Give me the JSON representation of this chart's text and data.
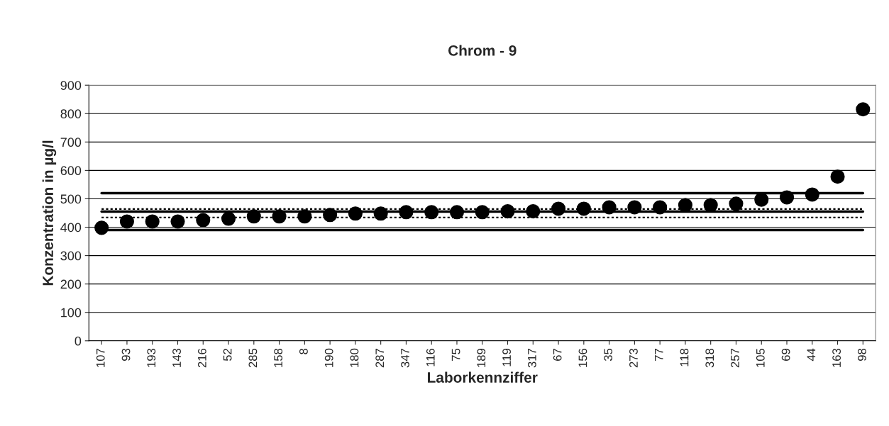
{
  "chart_data": {
    "type": "scatter",
    "title": "Chrom - 9",
    "xlabel": "Laborkennziffer",
    "ylabel": "Konzentration in µg/l",
    "categories": [
      "107",
      "93",
      "193",
      "143",
      "216",
      "52",
      "285",
      "158",
      "8",
      "190",
      "180",
      "287",
      "347",
      "116",
      "75",
      "189",
      "119",
      "317",
      "67",
      "156",
      "35",
      "273",
      "77",
      "118",
      "318",
      "257",
      "105",
      "69",
      "44",
      "163",
      "98"
    ],
    "series": [
      {
        "color": "#000000",
        "marker": "circle",
        "values": [
          398,
          420,
          420,
          420,
          425,
          430,
          438,
          438,
          438,
          443,
          448,
          448,
          453,
          453,
          453,
          453,
          456,
          456,
          465,
          465,
          470,
          470,
          470,
          478,
          478,
          483,
          497,
          505,
          515,
          578,
          815
        ]
      },
      {
        "type": "line",
        "color": "#000000",
        "line_style": "solid",
        "values": [
          520,
          520,
          520,
          520,
          520,
          520,
          520,
          520,
          520,
          520,
          520,
          520,
          520,
          520,
          520,
          520,
          520,
          520,
          520,
          520,
          520,
          520,
          520,
          520,
          520,
          520,
          520,
          520,
          520,
          520,
          520
        ]
      },
      {
        "type": "line",
        "color": "#000000",
        "line_style": "dotted",
        "values": [
          464,
          464,
          464,
          464,
          464,
          464,
          464,
          464,
          464,
          464,
          464,
          464,
          464,
          464,
          464,
          464,
          464,
          464,
          464,
          464,
          464,
          464,
          464,
          464,
          464,
          464,
          464,
          464,
          464,
          464,
          464
        ]
      },
      {
        "type": "line",
        "color": "#000000",
        "line_style": "solid",
        "values": [
          455,
          455,
          455,
          455,
          455,
          455,
          455,
          455,
          455,
          455,
          455,
          455,
          455,
          455,
          455,
          455,
          455,
          455,
          455,
          455,
          455,
          455,
          455,
          455,
          455,
          455,
          455,
          455,
          455,
          455,
          455
        ]
      },
      {
        "type": "line",
        "color": "#000000",
        "line_style": "dotted",
        "values": [
          434,
          434,
          434,
          434,
          434,
          434,
          434,
          434,
          434,
          434,
          434,
          434,
          434,
          434,
          434,
          434,
          434,
          434,
          434,
          434,
          434,
          434,
          434,
          434,
          434,
          434,
          434,
          434,
          434,
          434,
          434
        ]
      },
      {
        "type": "line",
        "color": "#000000",
        "line_style": "solid",
        "values": [
          390,
          390,
          390,
          390,
          390,
          390,
          390,
          390,
          390,
          390,
          390,
          390,
          390,
          390,
          390,
          390,
          390,
          390,
          390,
          390,
          390,
          390,
          390,
          390,
          390,
          390,
          390,
          390,
          390,
          390,
          390
        ]
      }
    ],
    "ylim": [
      0,
      900
    ],
    "yticks": [
      0,
      100,
      200,
      300,
      400,
      500,
      600,
      700,
      800,
      900
    ],
    "grid": "y",
    "legend": false
  }
}
